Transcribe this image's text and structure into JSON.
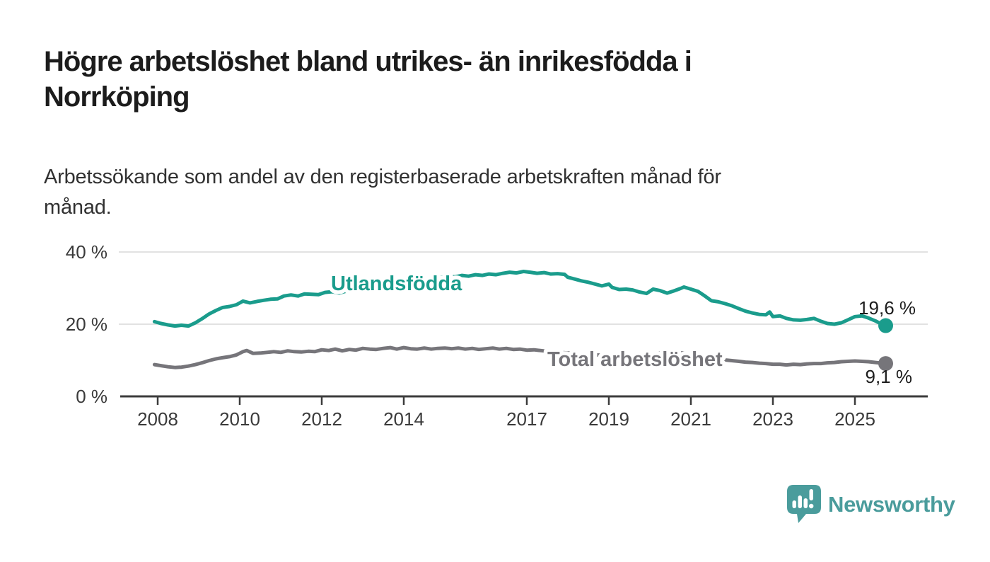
{
  "title": {
    "line1": "Högre arbetslöshet bland utrikes- än inrikesfödda i",
    "line2": "Norrköping"
  },
  "subtitle": {
    "line1": "Arbetssökande som andel av den registerbaserade arbetskraften månad för",
    "line2": "månad."
  },
  "branding": {
    "logo_text": "Newsworthy",
    "logo_color": "#4a9c9c",
    "logo_icon": "speech-bubble-bar-chart-icon"
  },
  "chart_data": {
    "type": "line",
    "title": "Högre arbetslöshet bland utrikes- än inrikesfödda i Norrköping",
    "xlabel": "",
    "ylabel": "Arbetssökande som andel av den registerbaserade arbetskraften",
    "x_unit": "year (monthly data)",
    "y_unit": "%",
    "xlim": [
      2007.1,
      2026.7
    ],
    "ylim": [
      0,
      43
    ],
    "grid": "horizontal",
    "legend": "inline-labels",
    "yticks": [
      {
        "value": 0,
        "label": "0 %"
      },
      {
        "value": 20,
        "label": "20 %"
      },
      {
        "value": 40,
        "label": "40 %"
      }
    ],
    "xticks": [
      {
        "value": 2008,
        "label": "2008"
      },
      {
        "value": 2010,
        "label": "2010"
      },
      {
        "value": 2012,
        "label": "2012"
      },
      {
        "value": 2014,
        "label": "2014"
      },
      {
        "value": 2017,
        "label": "2017"
      },
      {
        "value": 2019,
        "label": "2019"
      },
      {
        "value": 2021,
        "label": "2021"
      },
      {
        "value": 2023,
        "label": "2023"
      },
      {
        "value": 2025,
        "label": "2025"
      }
    ],
    "series": [
      {
        "name": "Utlandsfödda",
        "color": "#1a9c8c",
        "end_label": "19,6 %",
        "end_value": 19.6,
        "points": [
          [
            2007.92,
            20.7
          ],
          [
            2008.08,
            20.2
          ],
          [
            2008.25,
            19.8
          ],
          [
            2008.42,
            19.5
          ],
          [
            2008.58,
            19.7
          ],
          [
            2008.75,
            19.5
          ],
          [
            2008.92,
            20.4
          ],
          [
            2009.08,
            21.5
          ],
          [
            2009.25,
            22.8
          ],
          [
            2009.42,
            23.8
          ],
          [
            2009.58,
            24.6
          ],
          [
            2009.75,
            24.9
          ],
          [
            2009.92,
            25.4
          ],
          [
            2010.08,
            26.4
          ],
          [
            2010.25,
            25.9
          ],
          [
            2010.42,
            26.3
          ],
          [
            2010.58,
            26.6
          ],
          [
            2010.75,
            26.9
          ],
          [
            2010.92,
            27.0
          ],
          [
            2011.08,
            27.8
          ],
          [
            2011.25,
            28.1
          ],
          [
            2011.42,
            27.8
          ],
          [
            2011.58,
            28.4
          ],
          [
            2011.75,
            28.3
          ],
          [
            2011.92,
            28.2
          ],
          [
            2012.08,
            28.8
          ],
          [
            2012.25,
            29.0
          ],
          [
            2012.42,
            28.6
          ],
          [
            2012.58,
            29.1
          ],
          [
            2012.75,
            29.3
          ],
          [
            2012.92,
            29.6
          ],
          [
            2013.08,
            29.4
          ],
          [
            2013.25,
            29.8
          ],
          [
            2013.42,
            30.1
          ],
          [
            2013.58,
            29.9
          ],
          [
            2013.75,
            30.3
          ],
          [
            2013.92,
            30.6
          ],
          [
            2014.08,
            30.9
          ],
          [
            2014.25,
            31.3
          ],
          [
            2014.42,
            31.6
          ],
          [
            2014.58,
            32.0
          ],
          [
            2014.75,
            32.5
          ],
          [
            2014.92,
            33.0
          ],
          [
            2015.08,
            33.3
          ],
          [
            2015.25,
            33.1
          ],
          [
            2015.42,
            33.5
          ],
          [
            2015.58,
            33.3
          ],
          [
            2015.75,
            33.7
          ],
          [
            2015.92,
            33.5
          ],
          [
            2016.08,
            33.9
          ],
          [
            2016.25,
            33.7
          ],
          [
            2016.42,
            34.1
          ],
          [
            2016.58,
            34.4
          ],
          [
            2016.75,
            34.2
          ],
          [
            2016.92,
            34.6
          ],
          [
            2017.08,
            34.4
          ],
          [
            2017.25,
            34.1
          ],
          [
            2017.42,
            34.3
          ],
          [
            2017.58,
            33.9
          ],
          [
            2017.75,
            34.0
          ],
          [
            2017.92,
            33.8
          ],
          [
            2018.0,
            33.0
          ],
          [
            2018.17,
            32.5
          ],
          [
            2018.33,
            32.0
          ],
          [
            2018.5,
            31.6
          ],
          [
            2018.67,
            31.1
          ],
          [
            2018.83,
            30.6
          ],
          [
            2019.0,
            31.1
          ],
          [
            2019.08,
            30.2
          ],
          [
            2019.25,
            29.6
          ],
          [
            2019.42,
            29.7
          ],
          [
            2019.58,
            29.5
          ],
          [
            2019.75,
            28.9
          ],
          [
            2019.92,
            28.5
          ],
          [
            2020.08,
            29.7
          ],
          [
            2020.25,
            29.3
          ],
          [
            2020.42,
            28.6
          ],
          [
            2020.58,
            29.2
          ],
          [
            2020.75,
            29.9
          ],
          [
            2020.83,
            30.3
          ],
          [
            2021.0,
            29.7
          ],
          [
            2021.17,
            29.1
          ],
          [
            2021.33,
            27.9
          ],
          [
            2021.5,
            26.5
          ],
          [
            2021.67,
            26.2
          ],
          [
            2021.83,
            25.7
          ],
          [
            2022.0,
            25.1
          ],
          [
            2022.17,
            24.3
          ],
          [
            2022.33,
            23.6
          ],
          [
            2022.5,
            23.1
          ],
          [
            2022.67,
            22.7
          ],
          [
            2022.83,
            22.6
          ],
          [
            2022.92,
            23.4
          ],
          [
            2023.0,
            22.1
          ],
          [
            2023.17,
            22.3
          ],
          [
            2023.33,
            21.6
          ],
          [
            2023.5,
            21.2
          ],
          [
            2023.67,
            21.1
          ],
          [
            2023.83,
            21.3
          ],
          [
            2024.0,
            21.6
          ],
          [
            2024.17,
            20.8
          ],
          [
            2024.33,
            20.2
          ],
          [
            2024.5,
            20.0
          ],
          [
            2024.67,
            20.4
          ],
          [
            2024.83,
            21.2
          ],
          [
            2025.0,
            22.1
          ],
          [
            2025.17,
            22.3
          ],
          [
            2025.33,
            21.7
          ],
          [
            2025.5,
            20.9
          ],
          [
            2025.67,
            19.9
          ],
          [
            2025.75,
            19.6
          ]
        ]
      },
      {
        "name": "Total arbetslöshet",
        "color": "#76757a",
        "end_label": "9,1 %",
        "end_value": 9.1,
        "points": [
          [
            2007.92,
            8.8
          ],
          [
            2008.08,
            8.5
          ],
          [
            2008.25,
            8.2
          ],
          [
            2008.42,
            8.0
          ],
          [
            2008.58,
            8.1
          ],
          [
            2008.75,
            8.4
          ],
          [
            2008.92,
            8.8
          ],
          [
            2009.08,
            9.3
          ],
          [
            2009.25,
            9.9
          ],
          [
            2009.42,
            10.4
          ],
          [
            2009.58,
            10.7
          ],
          [
            2009.75,
            11.0
          ],
          [
            2009.92,
            11.5
          ],
          [
            2010.08,
            12.4
          ],
          [
            2010.17,
            12.7
          ],
          [
            2010.33,
            11.9
          ],
          [
            2010.5,
            12.0
          ],
          [
            2010.67,
            12.2
          ],
          [
            2010.83,
            12.4
          ],
          [
            2011.0,
            12.2
          ],
          [
            2011.17,
            12.6
          ],
          [
            2011.33,
            12.4
          ],
          [
            2011.5,
            12.3
          ],
          [
            2011.67,
            12.5
          ],
          [
            2011.83,
            12.4
          ],
          [
            2012.0,
            12.9
          ],
          [
            2012.17,
            12.7
          ],
          [
            2012.33,
            13.1
          ],
          [
            2012.5,
            12.6
          ],
          [
            2012.67,
            13.0
          ],
          [
            2012.83,
            12.8
          ],
          [
            2013.0,
            13.3
          ],
          [
            2013.17,
            13.1
          ],
          [
            2013.33,
            13.0
          ],
          [
            2013.5,
            13.3
          ],
          [
            2013.67,
            13.5
          ],
          [
            2013.83,
            13.1
          ],
          [
            2014.0,
            13.5
          ],
          [
            2014.17,
            13.2
          ],
          [
            2014.33,
            13.1
          ],
          [
            2014.5,
            13.4
          ],
          [
            2014.67,
            13.1
          ],
          [
            2014.83,
            13.3
          ],
          [
            2015.0,
            13.4
          ],
          [
            2015.17,
            13.2
          ],
          [
            2015.33,
            13.4
          ],
          [
            2015.5,
            13.1
          ],
          [
            2015.67,
            13.3
          ],
          [
            2015.83,
            13.0
          ],
          [
            2016.0,
            13.2
          ],
          [
            2016.17,
            13.4
          ],
          [
            2016.33,
            13.1
          ],
          [
            2016.5,
            13.3
          ],
          [
            2016.67,
            13.0
          ],
          [
            2016.83,
            13.1
          ],
          [
            2017.0,
            12.8
          ],
          [
            2017.17,
            12.9
          ],
          [
            2017.33,
            12.7
          ],
          [
            2017.5,
            12.5
          ],
          [
            2017.67,
            12.3
          ],
          [
            2017.83,
            12.2
          ],
          [
            2018.0,
            12.0
          ],
          [
            2018.17,
            11.9
          ],
          [
            2018.33,
            11.7
          ],
          [
            2018.5,
            11.6
          ],
          [
            2018.67,
            11.5
          ],
          [
            2018.83,
            11.4
          ],
          [
            2019.0,
            11.3
          ],
          [
            2019.17,
            11.3
          ],
          [
            2019.33,
            11.2
          ],
          [
            2019.5,
            11.3
          ],
          [
            2019.67,
            11.1
          ],
          [
            2019.83,
            11.1
          ],
          [
            2020.0,
            11.3
          ],
          [
            2020.17,
            11.8
          ],
          [
            2020.33,
            12.3
          ],
          [
            2020.5,
            12.4
          ],
          [
            2020.67,
            12.2
          ],
          [
            2020.83,
            12.0
          ],
          [
            2021.0,
            11.7
          ],
          [
            2021.17,
            11.4
          ],
          [
            2021.33,
            11.1
          ],
          [
            2021.5,
            10.7
          ],
          [
            2021.67,
            10.4
          ],
          [
            2021.83,
            10.1
          ],
          [
            2022.0,
            9.9
          ],
          [
            2022.17,
            9.7
          ],
          [
            2022.33,
            9.5
          ],
          [
            2022.5,
            9.4
          ],
          [
            2022.67,
            9.2
          ],
          [
            2022.83,
            9.1
          ],
          [
            2023.0,
            8.9
          ],
          [
            2023.17,
            8.9
          ],
          [
            2023.33,
            8.7
          ],
          [
            2023.5,
            8.9
          ],
          [
            2023.67,
            8.8
          ],
          [
            2023.83,
            9.0
          ],
          [
            2024.0,
            9.1
          ],
          [
            2024.17,
            9.1
          ],
          [
            2024.33,
            9.3
          ],
          [
            2024.5,
            9.4
          ],
          [
            2024.67,
            9.6
          ],
          [
            2024.83,
            9.7
          ],
          [
            2025.0,
            9.8
          ],
          [
            2025.17,
            9.7
          ],
          [
            2025.33,
            9.6
          ],
          [
            2025.5,
            9.4
          ],
          [
            2025.67,
            9.2
          ],
          [
            2025.75,
            9.1
          ]
        ]
      }
    ]
  }
}
